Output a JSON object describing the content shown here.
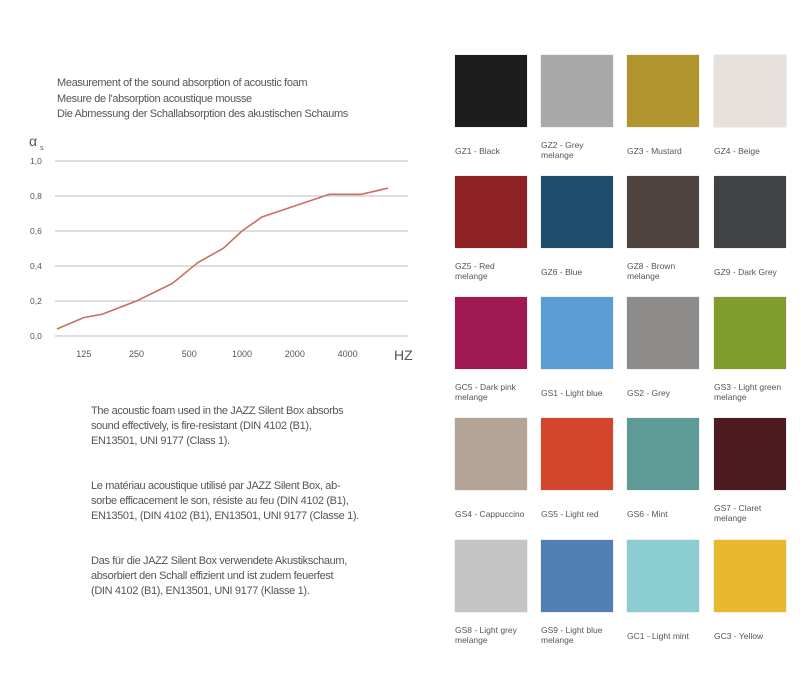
{
  "chart_data": {
    "type": "line",
    "title_lines": [
      "Measurement of the sound absorption of acoustic foam",
      "Mesure de l'absorption acoustique mousse",
      "Die Abmessung der Schallabsorption des akustischen Schaums"
    ],
    "ylabel": "α",
    "ylabel_sub": "s",
    "xlabel": "HZ",
    "x_scale": "log",
    "xlim": [
      88,
      6800
    ],
    "ylim": [
      0,
      1.0
    ],
    "x_ticks": [
      125,
      250,
      500,
      1000,
      2000,
      4000
    ],
    "x_tick_labels": [
      "125",
      "250",
      "500",
      "1000",
      "2000",
      "4000"
    ],
    "y_ticks": [
      0,
      0.2,
      0.4,
      0.6,
      0.8,
      1.0
    ],
    "y_tick_labels": [
      "0,0",
      "0,2",
      "0,4",
      "0,6",
      "0,8",
      "1,0"
    ],
    "grid": "horizontal",
    "line_color": "#c8705e",
    "x": [
      88,
      125,
      160,
      250,
      400,
      560,
      780,
      1000,
      1300,
      3150,
      4800,
      6800
    ],
    "y": [
      0.04,
      0.105,
      0.125,
      0.2,
      0.3,
      0.42,
      0.5,
      0.6,
      0.68,
      0.81,
      0.81,
      0.845
    ]
  },
  "paragraphs": [
    [
      "The acoustic foam used in the JAZZ Silent Box absorbs",
      "sound effectively, is fire-resistant (DIN 4102 (B1),",
      "EN13501, UNI 9177 (Class 1)."
    ],
    [
      "Le matériau acoustique utilisé par JAZZ Silent Box, ab-",
      "sorbe efficacement le son, résiste au feu (DIN 4102 (B1),",
      "EN13501, (DIN 4102 (B1), EN13501, UNI 9177 (Classe 1)."
    ],
    [
      "Das für die JAZZ Silent Box verwendete Akustikschaum,",
      "absorbiert den Schall effizient und ist zudem feuerfest",
      "(DIN 4102 (B1), EN13501, UNI 9177 (Klasse 1)."
    ]
  ],
  "swatches": [
    {
      "line1": "GZ1 - Black",
      "line2": "",
      "color": "#1c1c1c"
    },
    {
      "line1": "GZ2 - Grey",
      "line2": "melange",
      "color": "#a9a9a9"
    },
    {
      "line1": "GZ3 - Mustard",
      "line2": "",
      "color": "#b0952f"
    },
    {
      "line1": "GZ4 - Beige",
      "line2": "",
      "color": "#e7e1dc"
    },
    {
      "line1": "GZ5 - Red",
      "line2": "melange",
      "color": "#8e2224"
    },
    {
      "line1": "GZ6 - Blue",
      "line2": "",
      "color": "#1f4d6e"
    },
    {
      "line1": "GZ8 - Brown",
      "line2": "melange",
      "color": "#4f4440"
    },
    {
      "line1": "GZ9 - Dark Grey",
      "line2": "",
      "color": "#414243"
    },
    {
      "line1": "GC5 - Dark pink",
      "line2": "melange",
      "color": "#a01a52"
    },
    {
      "line1": "GS1 - Light blue",
      "line2": "",
      "color": "#5a9dd6"
    },
    {
      "line1": "GS2 - Grey",
      "line2": "",
      "color": "#8e8b8b"
    },
    {
      "line1": "GS3 - Light green",
      "line2": "melange",
      "color": "#7f9c2c"
    },
    {
      "line1": "GS4 - Cappuccino",
      "line2": "",
      "color": "#b3a495"
    },
    {
      "line1": "GS5 - Light red",
      "line2": "",
      "color": "#d4462c"
    },
    {
      "line1": "GS6 - Mint",
      "line2": "",
      "color": "#5e9a96"
    },
    {
      "line1": "GS7 - Claret",
      "line2": "melange",
      "color": "#4d1a1f"
    },
    {
      "line1": "GS8 - Light grey",
      "line2": "melange",
      "color": "#c4c4c4"
    },
    {
      "line1": "GS9 - Light blue",
      "line2": "melange",
      "color": "#4f7fb3"
    },
    {
      "line1": "GC1 - Light mint",
      "line2": "",
      "color": "#8ccdd1"
    },
    {
      "line1": "GC3 - Yellow",
      "line2": "",
      "color": "#e8b92e"
    }
  ]
}
